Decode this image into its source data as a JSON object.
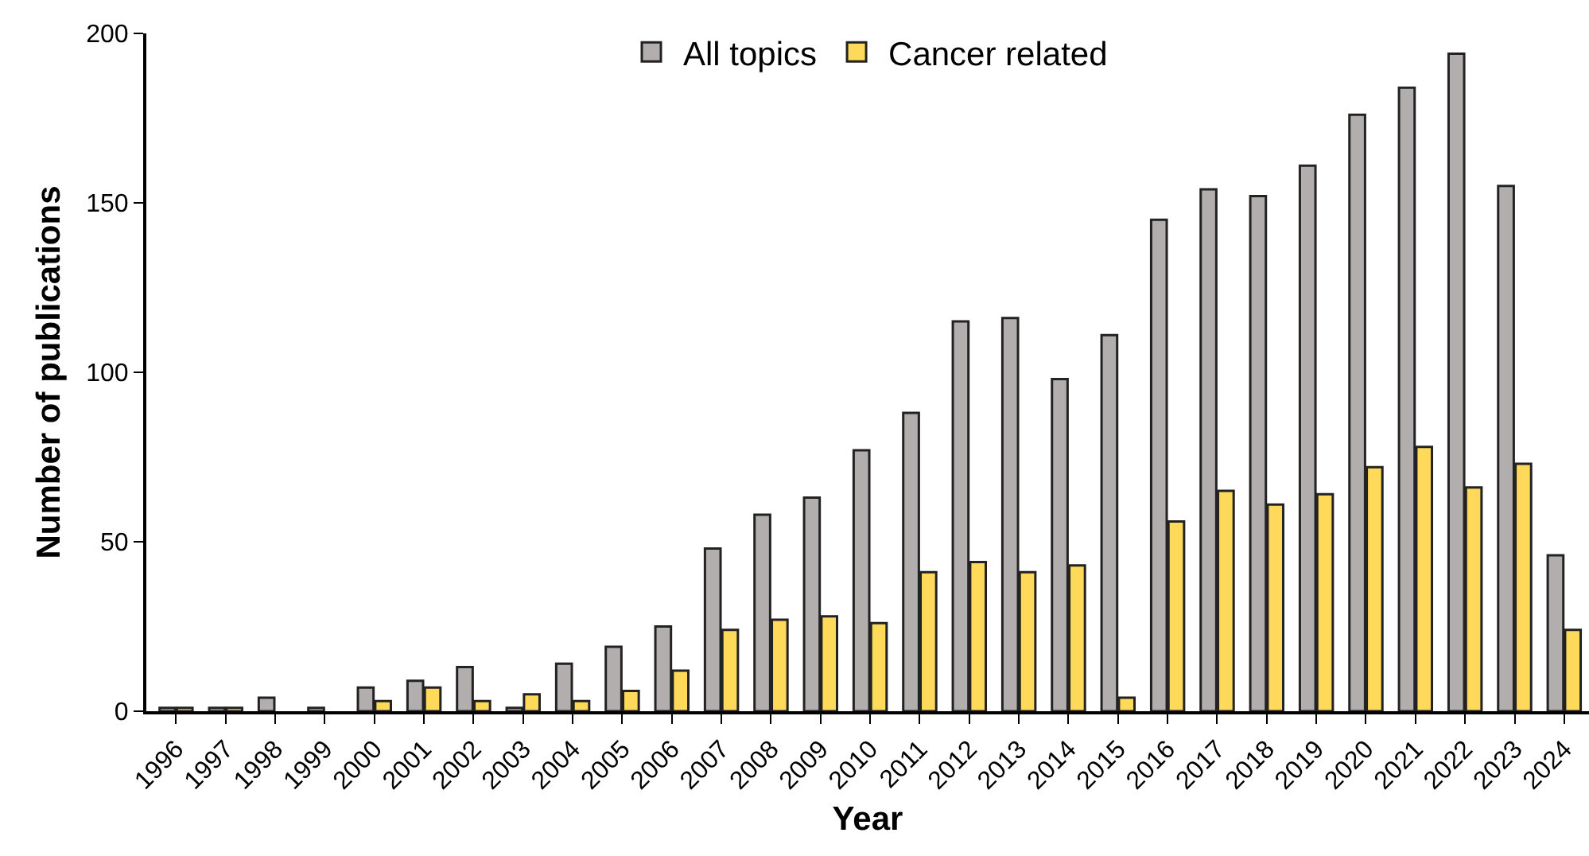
{
  "chart_data": {
    "type": "bar",
    "xlabel": "Year",
    "ylabel": "Number of publications",
    "categories": [
      "1996",
      "1997",
      "1998",
      "1999",
      "2000",
      "2001",
      "2002",
      "2003",
      "2004",
      "2005",
      "2006",
      "2007",
      "2008",
      "2009",
      "2010",
      "2011",
      "2012",
      "2013",
      "2014",
      "2015",
      "2016",
      "2017",
      "2018",
      "2019",
      "2020",
      "2021",
      "2022",
      "2023",
      "2024"
    ],
    "series": [
      {
        "name": "All topics",
        "color": "#b3aeae",
        "values": [
          1,
          1,
          4,
          1,
          7,
          9,
          13,
          1,
          14,
          19,
          25,
          48,
          58,
          63,
          77,
          88,
          115,
          116,
          98,
          111,
          145,
          154,
          152,
          161,
          176,
          184,
          194,
          155,
          46
        ]
      },
      {
        "name": "Cancer related",
        "color": "#ffd95a",
        "values": [
          1,
          1,
          0,
          0,
          3,
          7,
          3,
          5,
          3,
          6,
          12,
          24,
          27,
          28,
          26,
          41,
          44,
          41,
          43,
          4,
          56,
          65,
          61,
          64,
          72,
          78,
          66,
          73,
          24
        ]
      }
    ],
    "ylim": [
      0,
      200
    ],
    "yticks": [
      0,
      50,
      100,
      150,
      200
    ],
    "grid": false,
    "legend": "top"
  }
}
